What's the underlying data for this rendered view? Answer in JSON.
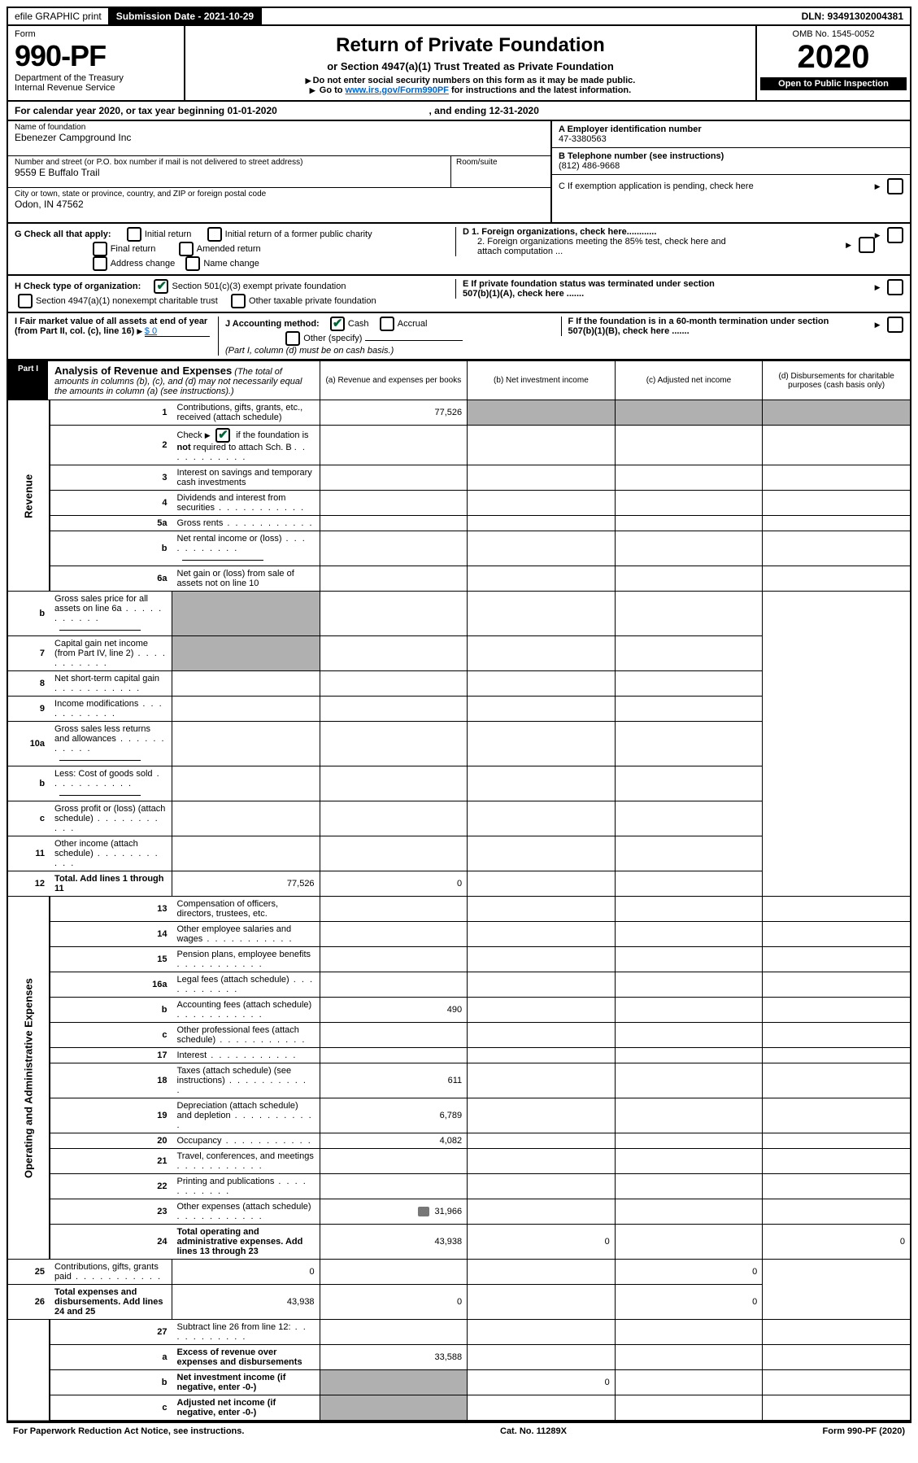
{
  "colors": {
    "text": "#000000",
    "bg": "#ffffff",
    "link": "#0066cc",
    "check": "#006633",
    "shade": "#b0b0b0",
    "black": "#000000"
  },
  "topbar": {
    "efile": "efile GRAPHIC print",
    "submission": "Submission Date - 2021-10-29",
    "dln": "DLN: 93491302004381"
  },
  "header": {
    "form_label": "Form",
    "form_number": "990-PF",
    "dept1": "Department of the Treasury",
    "dept2": "Internal Revenue Service",
    "title": "Return of Private Foundation",
    "subtitle": "or Section 4947(a)(1) Trust Treated as Private Foundation",
    "instr1": "Do not enter social security numbers on this form as it may be made public.",
    "instr2_pre": "Go to ",
    "instr2_link": "www.irs.gov/Form990PF",
    "instr2_post": " for instructions and the latest information.",
    "omb": "OMB No. 1545-0052",
    "year": "2020",
    "open": "Open to Public Inspection"
  },
  "cal": {
    "text": "For calendar year 2020, or tax year beginning 01-01-2020",
    "ending": ", and ending 12-31-2020"
  },
  "entity": {
    "name_label": "Name of foundation",
    "name": "Ebenezer Campground Inc",
    "addr_label": "Number and street (or P.O. box number if mail is not delivered to street address)",
    "addr": "9559 E Buffalo Trail",
    "room_label": "Room/suite",
    "city_label": "City or town, state or province, country, and ZIP or foreign postal code",
    "city": "Odon, IN  47562",
    "ein_label": "A Employer identification number",
    "ein": "47-3380563",
    "phone_label": "B Telephone number (see instructions)",
    "phone": "(812) 486-9668",
    "c_label": "C If exemption application is pending, check here",
    "d1": "D 1. Foreign organizations, check here............",
    "d2": "2. Foreign organizations meeting the 85% test, check here and attach computation ...",
    "e_label": "E  If private foundation status was terminated under section 507(b)(1)(A), check here .......",
    "f_label": "F  If the foundation is in a 60-month termination under section 507(b)(1)(B), check here .......",
    "g_label": "G Check all that apply:",
    "g_opts": {
      "initial": "Initial return",
      "initial_former": "Initial return of a former public charity",
      "final": "Final return",
      "amended": "Amended return",
      "address": "Address change",
      "name": "Name change"
    },
    "h_label": "H Check type of organization:",
    "h_501c3": "Section 501(c)(3) exempt private foundation",
    "h_4947": "Section 4947(a)(1) nonexempt charitable trust",
    "h_other": "Other taxable private foundation",
    "i_label": "I Fair market value of all assets at end of year (from Part II, col. (c), line 16)",
    "i_val": "$ 0",
    "j_label": "J Accounting method:",
    "j_cash": "Cash",
    "j_accrual": "Accrual",
    "j_other": "Other (specify)",
    "j_note": "(Part I, column (d) must be on cash basis.)"
  },
  "part1": {
    "tab": "Part I",
    "title": "Analysis of Revenue and Expenses",
    "title_note": "(The total of amounts in columns (b), (c), and (d) may not necessarily equal the amounts in column (a) (see instructions).)",
    "cols": {
      "a": "(a) Revenue and expenses per books",
      "b": "(b) Net investment income",
      "c": "(c) Adjusted net income",
      "d": "(d) Disbursements for charitable purposes (cash basis only)"
    },
    "side_rev": "Revenue",
    "side_exp": "Operating and Administrative Expenses"
  },
  "rows": [
    {
      "ln": "1",
      "desc": "Contributions, gifts, grants, etc., received (attach schedule)",
      "a": "77,526",
      "shade_bcd": true,
      "span": 7
    },
    {
      "ln": "2",
      "desc": "Check ▶ ☑ if the foundation is not required to attach Sch. B",
      "raw": true
    },
    {
      "ln": "3",
      "desc": "Interest on savings and temporary cash investments"
    },
    {
      "ln": "4",
      "desc": "Dividends and interest from securities"
    },
    {
      "ln": "5a",
      "desc": "Gross rents"
    },
    {
      "ln": "b",
      "desc": "Net rental income or (loss)",
      "inline_blank": true
    },
    {
      "ln": "6a",
      "desc": "Net gain or (loss) from sale of assets not on line 10"
    },
    {
      "ln": "b",
      "desc": "Gross sales price for all assets on line 6a",
      "inline_blank": true,
      "shade_a": true
    },
    {
      "ln": "7",
      "desc": "Capital gain net income (from Part IV, line 2)",
      "shade_a": true
    },
    {
      "ln": "8",
      "desc": "Net short-term capital gain"
    },
    {
      "ln": "9",
      "desc": "Income modifications"
    },
    {
      "ln": "10a",
      "desc": "Gross sales less returns and allowances",
      "inline_blank": true
    },
    {
      "ln": "b",
      "desc": "Less: Cost of goods sold",
      "inline_blank": true
    },
    {
      "ln": "c",
      "desc": "Gross profit or (loss) (attach schedule)"
    },
    {
      "ln": "11",
      "desc": "Other income (attach schedule)"
    },
    {
      "ln": "12",
      "desc": "Total. Add lines 1 through 11",
      "bold": true,
      "a": "77,526",
      "b": "0"
    },
    {
      "ln": "13",
      "desc": "Compensation of officers, directors, trustees, etc.",
      "span": 14
    },
    {
      "ln": "14",
      "desc": "Other employee salaries and wages"
    },
    {
      "ln": "15",
      "desc": "Pension plans, employee benefits"
    },
    {
      "ln": "16a",
      "desc": "Legal fees (attach schedule)"
    },
    {
      "ln": "b",
      "desc": "Accounting fees (attach schedule)",
      "a": "490"
    },
    {
      "ln": "c",
      "desc": "Other professional fees (attach schedule)"
    },
    {
      "ln": "17",
      "desc": "Interest"
    },
    {
      "ln": "18",
      "desc": "Taxes (attach schedule) (see instructions)",
      "a": "611"
    },
    {
      "ln": "19",
      "desc": "Depreciation (attach schedule) and depletion",
      "a": "6,789"
    },
    {
      "ln": "20",
      "desc": "Occupancy",
      "a": "4,082"
    },
    {
      "ln": "21",
      "desc": "Travel, conferences, and meetings"
    },
    {
      "ln": "22",
      "desc": "Printing and publications"
    },
    {
      "ln": "23",
      "desc": "Other expenses (attach schedule)",
      "a": "31,966",
      "icon": true
    },
    {
      "ln": "24",
      "desc": "Total operating and administrative expenses. Add lines 13 through 23",
      "bold": true,
      "a": "43,938",
      "b": "0",
      "d": "0"
    },
    {
      "ln": "25",
      "desc": "Contributions, gifts, grants paid",
      "a": "0",
      "d": "0"
    },
    {
      "ln": "26",
      "desc": "Total expenses and disbursements. Add lines 24 and 25",
      "bold": true,
      "a": "43,938",
      "b": "0",
      "d": "0"
    },
    {
      "ln": "27",
      "desc": "Subtract line 26 from line 12:"
    },
    {
      "ln": "a",
      "desc": "Excess of revenue over expenses and disbursements",
      "bold": true,
      "a": "33,588"
    },
    {
      "ln": "b",
      "desc": "Net investment income (if negative, enter -0-)",
      "bold": true,
      "shade_a": true,
      "b": "0"
    },
    {
      "ln": "c",
      "desc": "Adjusted net income (if negative, enter -0-)",
      "bold": true,
      "shade_a": true
    }
  ],
  "footer": {
    "left": "For Paperwork Reduction Act Notice, see instructions.",
    "cat": "Cat. No. 11289X",
    "right": "Form 990-PF (2020)"
  }
}
